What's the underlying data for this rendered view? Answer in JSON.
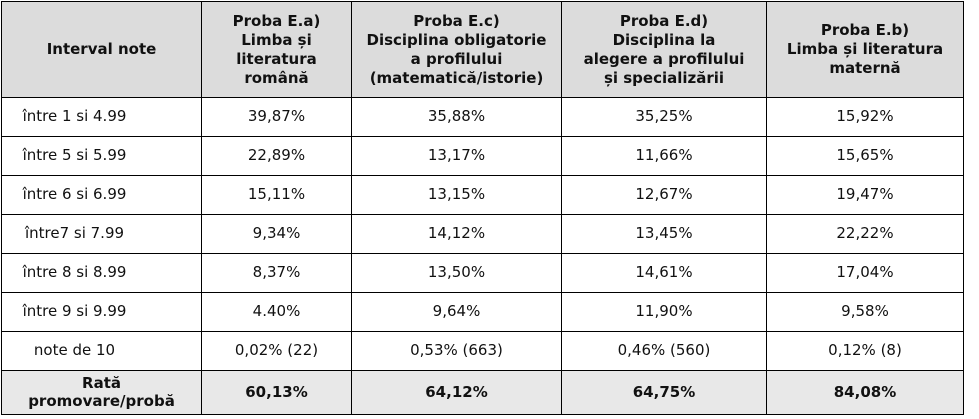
{
  "table": {
    "headers": [
      {
        "lines": [
          "Interval note"
        ]
      },
      {
        "lines": [
          "Proba E.a)",
          "Limba și",
          "literatura",
          "română"
        ]
      },
      {
        "lines": [
          "Proba E.c)",
          "Disciplina obligatorie",
          "a profilului",
          "(matematică/istorie)"
        ]
      },
      {
        "lines": [
          "Proba E.d)",
          "Disciplina la",
          "alegere a profilului",
          "și specializării"
        ]
      },
      {
        "lines": [
          "Proba E.b)",
          "Limba și literatura",
          "maternă"
        ]
      }
    ],
    "rows": [
      {
        "label": "între 1 si 4.99",
        "values": [
          "39,87%",
          "35,88%",
          "35,25%",
          "15,92%"
        ]
      },
      {
        "label": "între 5 si 5.99",
        "values": [
          "22,89%",
          "13,17%",
          "11,66%",
          "15,65%"
        ]
      },
      {
        "label": "între 6 si 6.99",
        "values": [
          "15,11%",
          "13,15%",
          "12,67%",
          "19,47%"
        ]
      },
      {
        "label": "între7 si 7.99",
        "values": [
          "9,34%",
          "14,12%",
          "13,45%",
          "22,22%"
        ]
      },
      {
        "label": "între 8 si 8.99",
        "values": [
          "8,37%",
          "13,50%",
          "14,61%",
          "17,04%"
        ]
      },
      {
        "label": "între 9 si 9.99",
        "values": [
          "4.40%",
          "9,64%",
          "11,90%",
          "9,58%"
        ]
      },
      {
        "label": "note de 10",
        "values": [
          "0,02% (22)",
          "0,53% (663)",
          "0,46% (560)",
          "0,12% (8)"
        ]
      }
    ],
    "total": {
      "label_lines": [
        "Rată",
        "promovare/probă"
      ],
      "values": [
        "60,13%",
        "64,12%",
        "64,75%",
        "84,08%"
      ]
    }
  }
}
